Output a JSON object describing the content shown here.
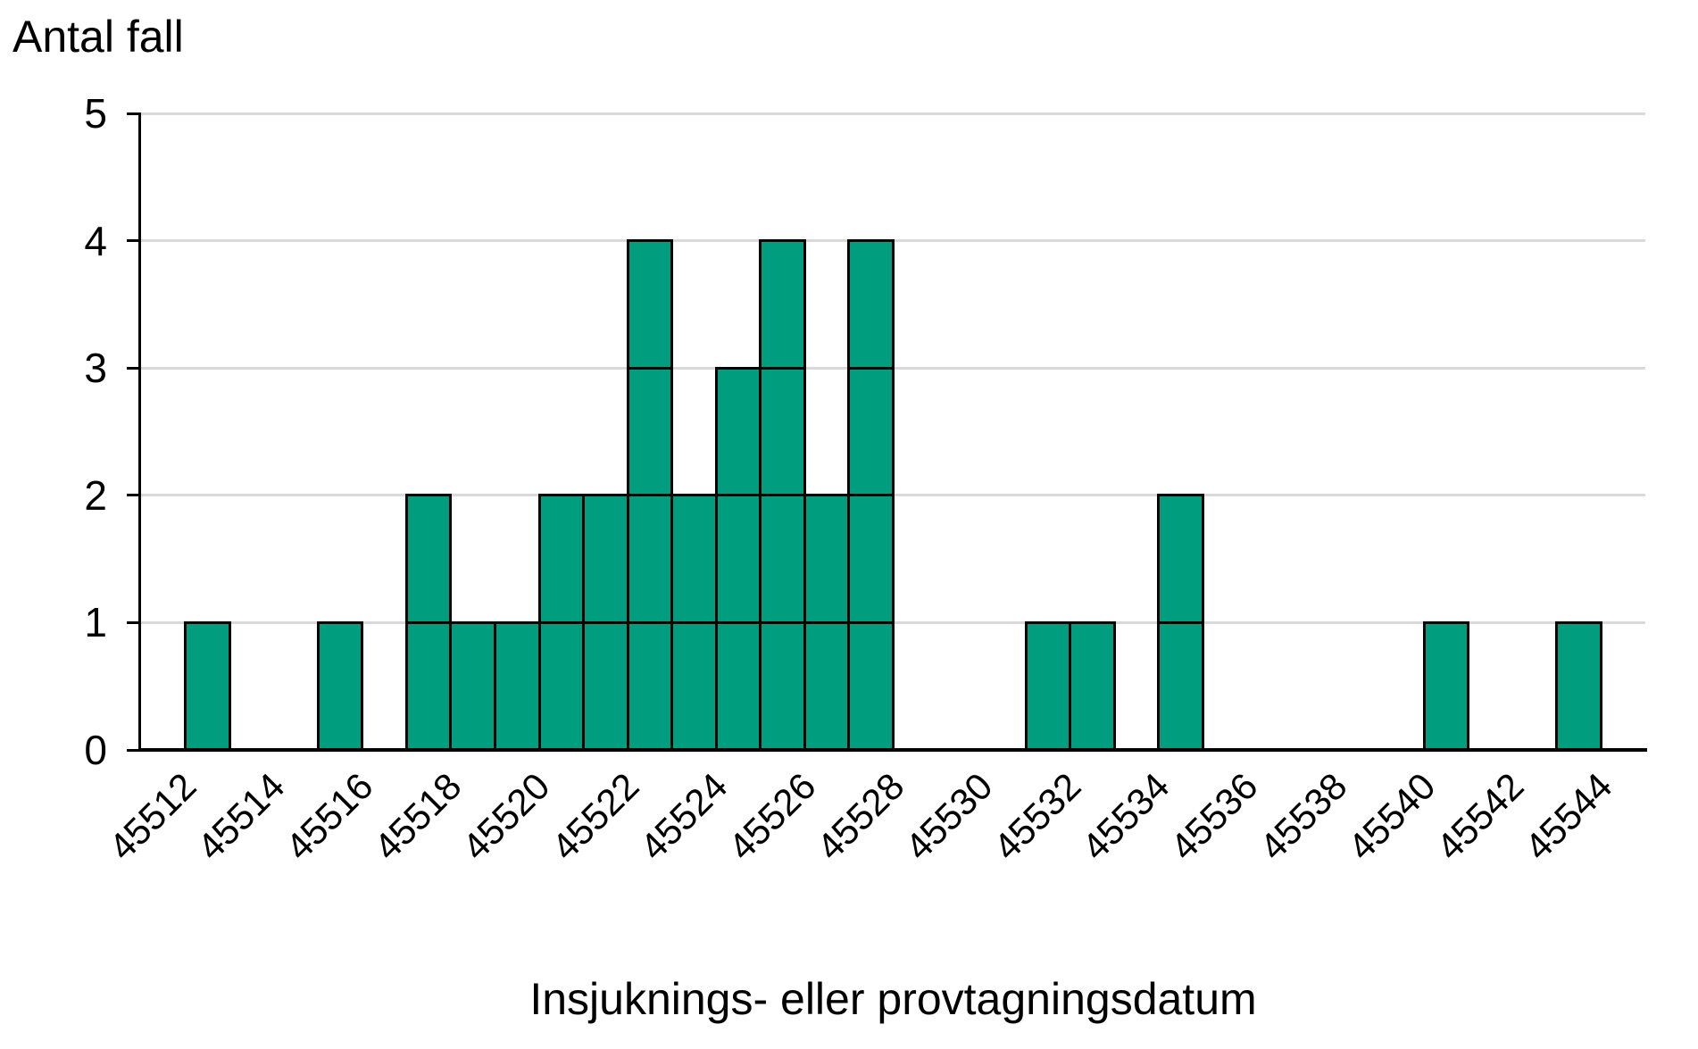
{
  "chart": {
    "title": "Antal fall",
    "x_axis_title": "Insjuknings- eller provtagningsdatum"
  },
  "colors": {
    "bar_fill": "#009E7E",
    "bar_border": "#000000",
    "gridline": "#D9D9D9",
    "axis": "#000000",
    "text": "#000000",
    "background": "#FFFFFF"
  },
  "chart_data": {
    "type": "bar",
    "title": "Antal fall",
    "xlabel": "Insjuknings- eller provtagningsdatum",
    "ylabel": "Antal fall",
    "ylim": [
      0,
      5
    ],
    "y_ticks": [
      0,
      1,
      2,
      3,
      4,
      5
    ],
    "grid": "horizontal",
    "legend": "none",
    "bar_style": "stacked-unit-boxes",
    "categories": [
      45512,
      45513,
      45514,
      45515,
      45516,
      45517,
      45518,
      45519,
      45520,
      45521,
      45522,
      45523,
      45524,
      45525,
      45526,
      45527,
      45528,
      45529,
      45530,
      45531,
      45532,
      45533,
      45534,
      45535,
      45536,
      45537,
      45538,
      45539,
      45540,
      45541,
      45542,
      45543,
      45544,
      45545
    ],
    "values": [
      0,
      1,
      0,
      0,
      1,
      0,
      2,
      1,
      1,
      2,
      2,
      4,
      2,
      3,
      4,
      2,
      4,
      0,
      0,
      0,
      1,
      1,
      0,
      2,
      0,
      0,
      0,
      0,
      0,
      1,
      0,
      0,
      1,
      0
    ],
    "x_tick_labels": [
      "45512",
      "45514",
      "45516",
      "45518",
      "45520",
      "45522",
      "45524",
      "45526",
      "45528",
      "45530",
      "45532",
      "45534",
      "45536",
      "45538",
      "45540",
      "45542",
      "45544"
    ],
    "x_tick_step_categories": 2
  }
}
